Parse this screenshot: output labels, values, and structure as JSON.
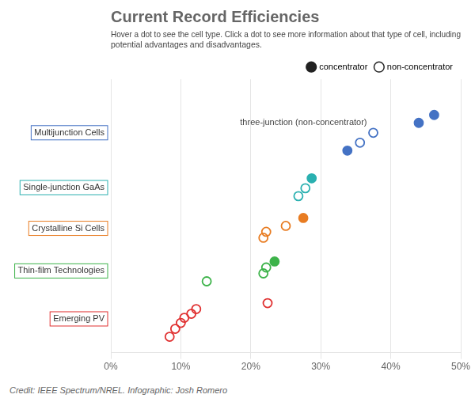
{
  "chart_data": {
    "type": "scatter",
    "title": "Current Record Efficiencies",
    "subtitle": "Hover a dot to see the cell type. Click a dot to see more information about that type of cell, including\npotential advantages and disadvantages.",
    "credit": "Credit: IEEE Spectrum/NREL. Infographic: Josh Romero",
    "series": [
      {
        "name": "Multijunction Cells",
        "color": "#4472c4",
        "x": [
          0.338,
          0.356,
          0.375,
          0.44,
          0.462
        ],
        "y": [
          5.0,
          5.2,
          5.45,
          5.7,
          5.9
        ],
        "concentrator": [
          true,
          false,
          false,
          true,
          true
        ]
      },
      {
        "name": "Single-junction GaAs",
        "color": "#2ab0b0",
        "x": [
          0.268,
          0.278,
          0.287
        ],
        "y": [
          3.85,
          4.05,
          4.3
        ],
        "concentrator": [
          false,
          false,
          true
        ]
      },
      {
        "name": "Crystalline Si Cells",
        "color": "#e87c22",
        "x": [
          0.218,
          0.222,
          0.25,
          0.275
        ],
        "y": [
          2.8,
          2.95,
          3.1,
          3.3
        ],
        "concentrator": [
          false,
          false,
          false,
          true
        ]
      },
      {
        "name": "Thin-film Technologies",
        "color": "#3db34a",
        "x": [
          0.137,
          0.218,
          0.222,
          0.234
        ],
        "y": [
          1.7,
          1.9,
          2.05,
          2.2
        ],
        "concentrator": [
          false,
          false,
          false,
          true
        ]
      },
      {
        "name": "Emerging PV",
        "color": "#e03030",
        "x": [
          0.084,
          0.092,
          0.1,
          0.105,
          0.115,
          0.122,
          0.224
        ],
        "y": [
          0.3,
          0.5,
          0.65,
          0.78,
          0.88,
          1.0,
          1.15
        ],
        "concentrator": [
          false,
          false,
          false,
          false,
          false,
          false,
          false
        ]
      }
    ],
    "legend_entries": [
      {
        "name": "concentrator",
        "marker": "filled"
      },
      {
        "name": "non-concentrator",
        "marker": "open"
      }
    ],
    "annotations": [
      {
        "text": "three-junction (non-concentrator)",
        "x": 0.375,
        "y": 5.45
      }
    ],
    "xlim": [
      0,
      0.5
    ],
    "xticks": [
      {
        "value": 0,
        "label": "0%"
      },
      {
        "value": 0.1,
        "label": "10%"
      },
      {
        "value": 0.2,
        "label": "20%"
      },
      {
        "value": 0.3,
        "label": "30%"
      },
      {
        "value": 0.4,
        "label": "40%"
      },
      {
        "value": 0.5,
        "label": "50%"
      }
    ],
    "ylim": [
      -0.1,
      6.8
    ],
    "grid": true,
    "tick_labels": "x",
    "legend": "upper right"
  }
}
